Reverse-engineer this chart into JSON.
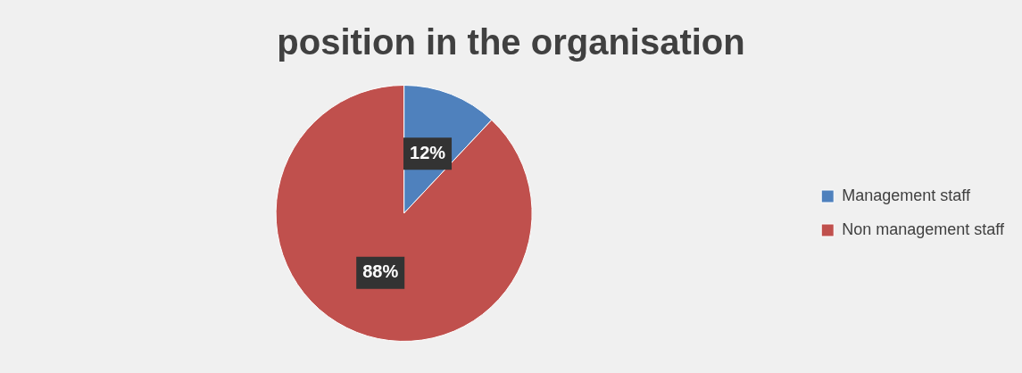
{
  "chart_data": {
    "type": "pie",
    "title": "position in the organisation",
    "categories": [
      "Management staff",
      "Non management staff"
    ],
    "values": [
      12,
      88
    ],
    "value_labels": [
      "12%",
      "88%"
    ],
    "colors": [
      "#4f81bd",
      "#c0504d"
    ],
    "legend": "right"
  }
}
